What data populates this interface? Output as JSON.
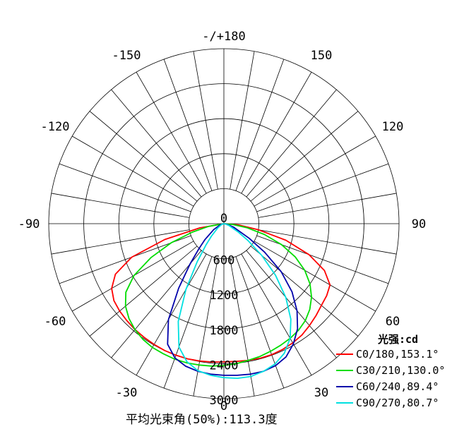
{
  "chart_data": {
    "type": "polar",
    "angle_ticks": [
      "-/+180",
      "150",
      "120",
      "90",
      "60",
      "30",
      "0",
      "-30",
      "-60",
      "-90",
      "-120",
      "-150"
    ],
    "radial_ticks": [
      "0",
      "600",
      "1200",
      "1800",
      "2400",
      "3000"
    ],
    "radial_max": 3000,
    "radial_step": 600,
    "angle_grid_step_deg": 10,
    "grid": true,
    "unit_label": "光强:cd",
    "legend_position": "bottom-right",
    "footer": "平均光束角(50%):113.3度",
    "series": [
      {
        "name": "C0/180,153.1°",
        "color": "#ff0000",
        "points": [
          {
            "angle": -90,
            "value": 0
          },
          {
            "angle": -80,
            "value": 420
          },
          {
            "angle": -75,
            "value": 1050
          },
          {
            "angle": -70,
            "value": 1680
          },
          {
            "angle": -65,
            "value": 2050
          },
          {
            "angle": -60,
            "value": 2220
          },
          {
            "angle": -55,
            "value": 2300
          },
          {
            "angle": -50,
            "value": 2330
          },
          {
            "angle": -45,
            "value": 2350
          },
          {
            "angle": -40,
            "value": 2370
          },
          {
            "angle": -35,
            "value": 2380
          },
          {
            "angle": -30,
            "value": 2390
          },
          {
            "angle": -25,
            "value": 2400
          },
          {
            "angle": -20,
            "value": 2400
          },
          {
            "angle": -15,
            "value": 2400
          },
          {
            "angle": -10,
            "value": 2390
          },
          {
            "angle": -5,
            "value": 2380
          },
          {
            "angle": 0,
            "value": 2370
          },
          {
            "angle": 5,
            "value": 2370
          },
          {
            "angle": 10,
            "value": 2380
          },
          {
            "angle": 15,
            "value": 2390
          },
          {
            "angle": 20,
            "value": 2390
          },
          {
            "angle": 25,
            "value": 2380
          },
          {
            "angle": 30,
            "value": 2360
          },
          {
            "angle": 35,
            "value": 2330
          },
          {
            "angle": 40,
            "value": 2280
          },
          {
            "angle": 45,
            "value": 2230
          },
          {
            "angle": 50,
            "value": 2180
          },
          {
            "angle": 55,
            "value": 2150
          },
          {
            "angle": 60,
            "value": 2100
          },
          {
            "angle": 65,
            "value": 1900
          },
          {
            "angle": 70,
            "value": 1550
          },
          {
            "angle": 75,
            "value": 1100
          },
          {
            "angle": 80,
            "value": 600
          },
          {
            "angle": 85,
            "value": 250
          },
          {
            "angle": 90,
            "value": 0
          }
        ]
      },
      {
        "name": "C30/210,130.0°",
        "color": "#00dd00",
        "points": [
          {
            "angle": -90,
            "value": 0
          },
          {
            "angle": -80,
            "value": 260
          },
          {
            "angle": -75,
            "value": 560
          },
          {
            "angle": -70,
            "value": 960
          },
          {
            "angle": -65,
            "value": 1380
          },
          {
            "angle": -60,
            "value": 1780
          },
          {
            "angle": -55,
            "value": 2050
          },
          {
            "angle": -50,
            "value": 2200
          },
          {
            "angle": -45,
            "value": 2300
          },
          {
            "angle": -40,
            "value": 2370
          },
          {
            "angle": -35,
            "value": 2420
          },
          {
            "angle": -30,
            "value": 2450
          },
          {
            "angle": -25,
            "value": 2460
          },
          {
            "angle": -20,
            "value": 2470
          },
          {
            "angle": -15,
            "value": 2470
          },
          {
            "angle": -10,
            "value": 2460
          },
          {
            "angle": -5,
            "value": 2450
          },
          {
            "angle": 0,
            "value": 2430
          },
          {
            "angle": 5,
            "value": 2410
          },
          {
            "angle": 10,
            "value": 2380
          },
          {
            "angle": 15,
            "value": 2360
          },
          {
            "angle": 20,
            "value": 2330
          },
          {
            "angle": 25,
            "value": 2300
          },
          {
            "angle": 30,
            "value": 2270
          },
          {
            "angle": 35,
            "value": 2230
          },
          {
            "angle": 40,
            "value": 2170
          },
          {
            "angle": 45,
            "value": 2080
          },
          {
            "angle": 50,
            "value": 1960
          },
          {
            "angle": 55,
            "value": 1800
          },
          {
            "angle": 60,
            "value": 1600
          },
          {
            "angle": 65,
            "value": 1350
          },
          {
            "angle": 70,
            "value": 1050
          },
          {
            "angle": 75,
            "value": 720
          },
          {
            "angle": 80,
            "value": 400
          },
          {
            "angle": 85,
            "value": 150
          },
          {
            "angle": 90,
            "value": 0
          }
        ]
      },
      {
        "name": "C60/240,89.4°",
        "color": "#0000aa",
        "points": [
          {
            "angle": -90,
            "value": 0
          },
          {
            "angle": -75,
            "value": 60
          },
          {
            "angle": -60,
            "value": 200
          },
          {
            "angle": -50,
            "value": 420
          },
          {
            "angle": -45,
            "value": 600
          },
          {
            "angle": -40,
            "value": 900
          },
          {
            "angle": -35,
            "value": 1350
          },
          {
            "angle": -30,
            "value": 1900
          },
          {
            "angle": -25,
            "value": 2280
          },
          {
            "angle": -20,
            "value": 2450
          },
          {
            "angle": -15,
            "value": 2530
          },
          {
            "angle": -10,
            "value": 2570
          },
          {
            "angle": -5,
            "value": 2590
          },
          {
            "angle": 0,
            "value": 2600
          },
          {
            "angle": 5,
            "value": 2610
          },
          {
            "angle": 10,
            "value": 2620
          },
          {
            "angle": 15,
            "value": 2620
          },
          {
            "angle": 20,
            "value": 2590
          },
          {
            "angle": 25,
            "value": 2520
          },
          {
            "angle": 30,
            "value": 2380
          },
          {
            "angle": 35,
            "value": 2200
          },
          {
            "angle": 40,
            "value": 1950
          },
          {
            "angle": 45,
            "value": 1650
          },
          {
            "angle": 50,
            "value": 1280
          },
          {
            "angle": 55,
            "value": 850
          },
          {
            "angle": 60,
            "value": 500
          },
          {
            "angle": 70,
            "value": 180
          },
          {
            "angle": 80,
            "value": 50
          },
          {
            "angle": 90,
            "value": 0
          }
        ]
      },
      {
        "name": "C90/270,80.7°",
        "color": "#00e0e0",
        "points": [
          {
            "angle": -90,
            "value": 0
          },
          {
            "angle": -70,
            "value": 40
          },
          {
            "angle": -55,
            "value": 130
          },
          {
            "angle": -45,
            "value": 300
          },
          {
            "angle": -40,
            "value": 480
          },
          {
            "angle": -35,
            "value": 800
          },
          {
            "angle": -30,
            "value": 1300
          },
          {
            "angle": -25,
            "value": 1850
          },
          {
            "angle": -20,
            "value": 2250
          },
          {
            "angle": -15,
            "value": 2450
          },
          {
            "angle": -10,
            "value": 2560
          },
          {
            "angle": -5,
            "value": 2610
          },
          {
            "angle": 0,
            "value": 2640
          },
          {
            "angle": 5,
            "value": 2660
          },
          {
            "angle": 10,
            "value": 2660
          },
          {
            "angle": 15,
            "value": 2620
          },
          {
            "angle": 20,
            "value": 2560
          },
          {
            "angle": 25,
            "value": 2450
          },
          {
            "angle": 30,
            "value": 2270
          },
          {
            "angle": 35,
            "value": 2000
          },
          {
            "angle": 40,
            "value": 1650
          },
          {
            "angle": 45,
            "value": 1250
          },
          {
            "angle": 50,
            "value": 850
          },
          {
            "angle": 55,
            "value": 500
          },
          {
            "angle": 60,
            "value": 280
          },
          {
            "angle": 70,
            "value": 90
          },
          {
            "angle": 80,
            "value": 20
          },
          {
            "angle": 90,
            "value": 0
          }
        ]
      }
    ]
  }
}
